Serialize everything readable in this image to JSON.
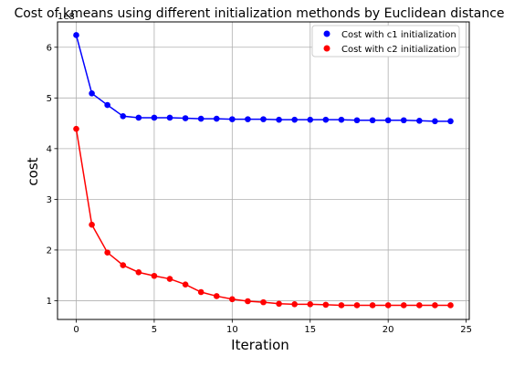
{
  "chart_data": {
    "type": "line",
    "title": "Cost of kmeans using different initialization methonds by Euclidean distance",
    "xlabel": "Iteration",
    "ylabel": "cost",
    "y_offset_label": "1e8",
    "xlim": [
      -1.2,
      25.2
    ],
    "ylim": [
      0.63,
      6.5
    ],
    "x_ticks": [
      0,
      5,
      10,
      15,
      20,
      25
    ],
    "y_ticks": [
      1,
      2,
      3,
      4,
      5,
      6
    ],
    "grid": true,
    "legend_position": "top-right",
    "x": [
      0,
      1,
      2,
      3,
      4,
      5,
      6,
      7,
      8,
      9,
      10,
      11,
      12,
      13,
      14,
      15,
      16,
      17,
      18,
      19,
      20,
      21,
      22,
      23,
      24
    ],
    "series": [
      {
        "name": "Cost with c1 initialization",
        "color": "#0000ff",
        "values": [
          6.24,
          5.09,
          4.86,
          4.64,
          4.61,
          4.61,
          4.61,
          4.6,
          4.59,
          4.59,
          4.58,
          4.58,
          4.58,
          4.57,
          4.57,
          4.57,
          4.57,
          4.57,
          4.56,
          4.56,
          4.56,
          4.56,
          4.55,
          4.54,
          4.54
        ]
      },
      {
        "name": "Cost with c2 initialization",
        "color": "#ff0000",
        "values": [
          4.39,
          2.5,
          1.95,
          1.7,
          1.56,
          1.49,
          1.43,
          1.32,
          1.17,
          1.09,
          1.03,
          0.99,
          0.97,
          0.94,
          0.93,
          0.93,
          0.92,
          0.91,
          0.91,
          0.91,
          0.91,
          0.91,
          0.91,
          0.91,
          0.91
        ]
      }
    ]
  }
}
